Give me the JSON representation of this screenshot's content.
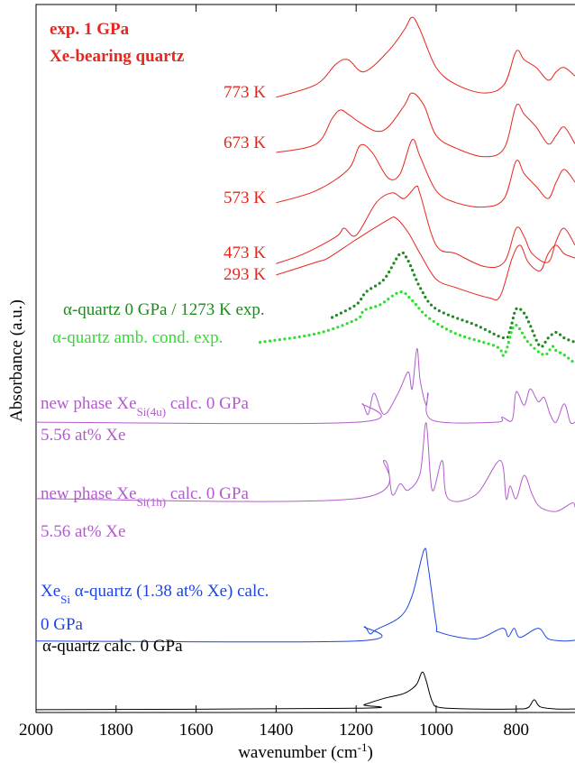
{
  "chart_data": {
    "type": "line",
    "xlabel": [
      {
        "text": "wavenumber (cm"
      },
      {
        "text": "-1",
        "sup": true
      },
      {
        "text": ")"
      }
    ],
    "ylabel": "Absorbance (a.u.)",
    "xlim": [
      2000,
      653
    ],
    "ylim": [
      0,
      100
    ],
    "xticks": [
      2000,
      1800,
      1600,
      1400,
      1200,
      1000,
      800
    ],
    "series": [
      {
        "color": "#e8261e",
        "style": "line",
        "x": [
          1400,
          1300,
          1250,
          1220,
          1180,
          1120,
          1080,
          1060,
          1040,
          1000,
          950,
          880,
          830,
          800,
          780,
          750,
          720,
          700,
          680,
          653
        ],
        "values": [
          86.9,
          88.7,
          91.6,
          92.2,
          90.5,
          93.4,
          96.4,
          98.2,
          96.4,
          91.1,
          88.7,
          87.5,
          88.7,
          93.4,
          92.2,
          91.1,
          89.3,
          90.5,
          91.1,
          89.9
        ]
      },
      {
        "color": "#e8261e",
        "style": "line",
        "x": [
          1400,
          1300,
          1260,
          1240,
          1220,
          1190,
          1150,
          1120,
          1080,
          1060,
          1030,
          1000,
          950,
          880,
          830,
          800,
          780,
          750,
          720,
          700,
          680,
          653
        ],
        "values": [
          79.1,
          80.3,
          83.9,
          85.1,
          84.5,
          83.3,
          82.1,
          82.7,
          85.7,
          87.5,
          85.7,
          81.5,
          79.7,
          78.5,
          79.7,
          85.7,
          84.5,
          82.7,
          80.3,
          81.5,
          82.7,
          80.3
        ]
      },
      {
        "color": "#e8261e",
        "style": "line",
        "x": [
          1400,
          1300,
          1220,
          1190,
          1160,
          1120,
          1090,
          1060,
          1040,
          1000,
          950,
          880,
          830,
          800,
          780,
          750,
          720,
          700,
          680,
          653
        ],
        "values": [
          72.0,
          73.7,
          76.7,
          80.1,
          79.1,
          75.5,
          76.1,
          80.9,
          78.5,
          73.7,
          72.0,
          71.4,
          72.6,
          77.9,
          76.1,
          74.3,
          72.6,
          74.9,
          76.7,
          74.9
        ]
      },
      {
        "color": "#e8261e",
        "style": "line",
        "x": [
          1400,
          1330,
          1250,
          1230,
          1200,
          1150,
          1110,
          1080,
          1050,
          1040,
          1000,
          950,
          880,
          830,
          800,
          780,
          760,
          720,
          700,
          680,
          653
        ],
        "values": [
          63.4,
          64.8,
          67.2,
          68.4,
          67.4,
          72.0,
          73.4,
          72.6,
          74.3,
          73.2,
          66.0,
          64.8,
          63.0,
          63.6,
          68.4,
          67.2,
          64.8,
          63.6,
          66.6,
          68.4,
          66.0
        ]
      },
      {
        "color": "#e8261e",
        "style": "line",
        "x": [
          1400,
          1300,
          1270,
          1200,
          1120,
          1100,
          1070,
          1040,
          1000,
          950,
          870,
          840,
          810,
          790,
          770,
          740,
          720,
          700,
          680,
          653
        ],
        "values": [
          61.8,
          63.6,
          64.2,
          66.8,
          69.6,
          69.8,
          67.8,
          64.8,
          61.2,
          60.0,
          58.6,
          58.8,
          64.2,
          66.0,
          63.6,
          62.4,
          64.8,
          66.0,
          64.8,
          64.2
        ]
      },
      {
        "color": "#1e8a1e",
        "style": "dots",
        "x": [
          1260,
          1200,
          1175,
          1130,
          1090,
          1070,
          1040,
          1000,
          900,
          830,
          815,
          800,
          780,
          765,
          740,
          720,
          700,
          680,
          653
        ],
        "values": [
          55.8,
          57.6,
          59.4,
          61.2,
          64.8,
          63.8,
          60.0,
          57.0,
          54.7,
          52.9,
          54.1,
          57.0,
          56.4,
          54.7,
          51.7,
          52.9,
          53.7,
          52.9,
          52.3
        ]
      },
      {
        "color": "#2ee02e",
        "style": "dots",
        "x": [
          1440,
          1300,
          1200,
          1180,
          1140,
          1090,
          1060,
          1020,
          950,
          850,
          830,
          810,
          800,
          790,
          770,
          730,
          710,
          700,
          680,
          653
        ],
        "values": [
          52.3,
          53.5,
          55.5,
          56.8,
          57.6,
          59.4,
          58.2,
          55.8,
          53.5,
          51.7,
          50.5,
          54.1,
          54.7,
          54.1,
          52.3,
          50.5,
          51.7,
          51.1,
          50.5,
          49.3
        ]
      },
      {
        "color": "#b25ccc",
        "style": "line",
        "x": [
          2000,
          1200,
          1185,
          1170,
          1155,
          1130,
          1095,
          1070,
          1060,
          1048,
          1040,
          1025,
          1020,
          1010,
          850,
          835,
          810,
          800,
          780,
          765,
          745,
          730,
          715,
          700,
          680,
          665,
          653
        ],
        "values": [
          41.0,
          41.0,
          43.6,
          42.1,
          45.1,
          42.1,
          45.1,
          48.1,
          45.7,
          51.4,
          46.9,
          43.4,
          45.1,
          41.3,
          41.0,
          41.7,
          41.3,
          45.3,
          43.4,
          45.7,
          43.9,
          44.5,
          42.1,
          41.0,
          43.6,
          41.0,
          41.0
        ]
      },
      {
        "color": "#b25ccc",
        "style": "line",
        "x": [
          2000,
          1200,
          1130,
          1110,
          1090,
          1070,
          1040,
          1025,
          1010,
          985,
          970,
          900,
          840,
          825,
          815,
          800,
          780,
          760,
          740,
          700,
          660,
          653
        ],
        "values": [
          30.2,
          30.2,
          35.6,
          30.8,
          32.3,
          31.4,
          33.8,
          40.9,
          31.4,
          35.6,
          30.2,
          30.8,
          35.6,
          30.2,
          32.0,
          30.2,
          33.5,
          30.8,
          29.0,
          28.4,
          29.6,
          29.0
        ]
      },
      {
        "color": "#1f44e0",
        "style": "line",
        "x": [
          2000,
          1200,
          1180,
          1165,
          1150,
          1090,
          1060,
          1030,
          1020,
          1000,
          990,
          900,
          835,
          820,
          805,
          790,
          745,
          720,
          680,
          653
        ],
        "values": [
          10.1,
          10.1,
          12.1,
          11.1,
          11.7,
          13.5,
          16.5,
          23.0,
          20.6,
          12.5,
          11.3,
          10.4,
          11.9,
          10.7,
          11.9,
          10.6,
          11.9,
          10.4,
          10.1,
          10.2
        ]
      },
      {
        "color": "#000000",
        "style": "line",
        "x": [
          2000,
          1200,
          1180,
          1130,
          1080,
          1050,
          1035,
          1025,
          1010,
          990,
          900,
          800,
          770,
          755,
          740,
          700,
          653
        ],
        "values": [
          0.4,
          0.6,
          1.1,
          2.0,
          2.7,
          3.9,
          5.7,
          4.5,
          1.6,
          0.7,
          0.5,
          0.5,
          0.7,
          1.8,
          0.8,
          0.5,
          0.5
        ]
      }
    ],
    "annotations": [
      {
        "color": "#e8261e",
        "bold": true,
        "parts": [
          {
            "text": "exp. 1 GPa"
          }
        ]
      },
      {
        "color": "#e8261e",
        "bold": true,
        "parts": [
          {
            "text": "Xe-bearing quartz"
          }
        ]
      },
      {
        "color": "#e8261e",
        "parts": [
          {
            "text": "773 K"
          }
        ]
      },
      {
        "color": "#e8261e",
        "parts": [
          {
            "text": "673 K"
          }
        ]
      },
      {
        "color": "#e8261e",
        "parts": [
          {
            "text": "573 K"
          }
        ]
      },
      {
        "color": "#e8261e",
        "parts": [
          {
            "text": "473 K"
          }
        ]
      },
      {
        "color": "#e8261e",
        "parts": [
          {
            "text": "293 K"
          }
        ]
      },
      {
        "color": "#1e8a1e",
        "parts": [
          {
            "text": "α-quartz 0 GPa / 1273 K exp."
          }
        ]
      },
      {
        "color": "#2ee02e",
        "parts": [
          {
            "text": "α-quartz amb. cond. exp."
          }
        ]
      },
      {
        "color": "#b25ccc",
        "parts": [
          {
            "text": "new phase Xe"
          },
          {
            "text": "Si(4u)",
            "sub": true
          },
          {
            "text": " calc.  0 GPa"
          }
        ]
      },
      {
        "color": "#b25ccc",
        "parts": [
          {
            "text": "5.56 at% Xe"
          }
        ]
      },
      {
        "color": "#b25ccc",
        "parts": [
          {
            "text": "new phase Xe"
          },
          {
            "text": "Si(1h)",
            "sub": true
          },
          {
            "text": " calc.  0 GPa"
          }
        ]
      },
      {
        "color": "#b25ccc",
        "parts": [
          {
            "text": "5.56 at% Xe"
          }
        ]
      },
      {
        "color": "#1f44e0",
        "parts": [
          {
            "text": "Xe"
          },
          {
            "text": "Si",
            "sub": true
          },
          {
            "text": "  α-quartz (1.38 at% Xe) calc."
          }
        ]
      },
      {
        "color": "#1f44e0",
        "parts": [
          {
            "text": "0 GPa"
          }
        ]
      },
      {
        "color": "#000000",
        "parts": [
          {
            "text": "α-quartz calc.  0 GPa"
          }
        ]
      }
    ]
  }
}
